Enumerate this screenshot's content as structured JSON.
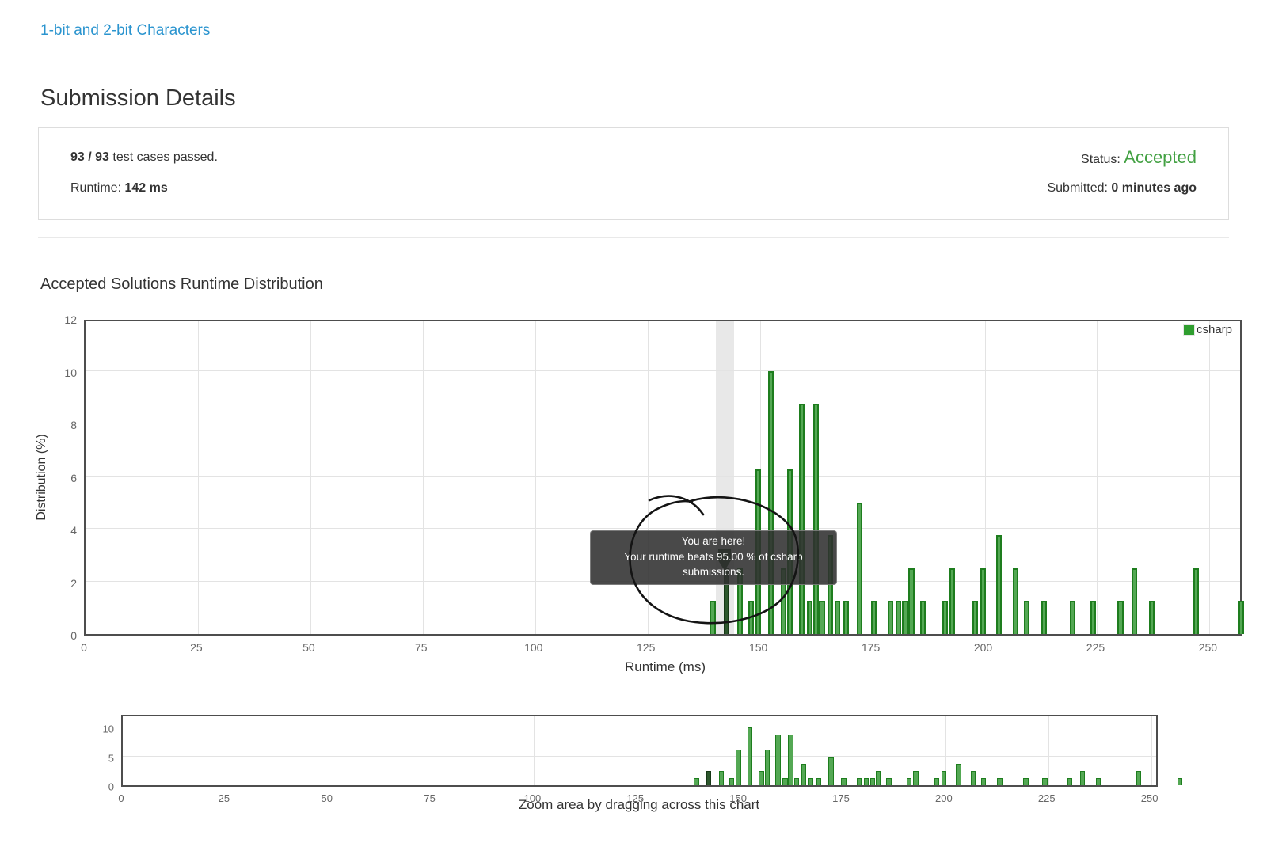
{
  "header": {
    "problem_link": "1-bit and 2-bit Characters",
    "page_title": "Submission Details"
  },
  "details": {
    "passed_count": "93 / 93",
    "passed_text": " test cases passed.",
    "runtime_label": "Runtime: ",
    "runtime_value": "142 ms",
    "status_label": "Status: ",
    "status_value": "Accepted",
    "submitted_label": "Submitted: ",
    "submitted_value": "0 minutes ago"
  },
  "section": {
    "chart_title": "Accepted Solutions Runtime Distribution"
  },
  "chart_data": {
    "type": "bar",
    "title": "Accepted Solutions Runtime Distribution",
    "xlabel": "Runtime (ms)",
    "ylabel": "Distribution (%)",
    "xlim": [
      0,
      257.5
    ],
    "ylim": [
      0,
      12
    ],
    "x_ticks": [
      0,
      25,
      50,
      75,
      100,
      125,
      150,
      175,
      200,
      225,
      250
    ],
    "y_ticks": [
      0,
      2,
      4,
      6,
      8,
      10,
      12
    ],
    "grid": true,
    "legend": [
      "csharp"
    ],
    "legend_position": "top-right",
    "series_name": "csharp",
    "bar_width_ms": 1.25,
    "bars": [
      [
        139.5,
        1.25
      ],
      [
        142.5,
        2.5
      ],
      [
        145.5,
        2.5
      ],
      [
        148,
        1.25
      ],
      [
        149.7,
        6.25
      ],
      [
        152.5,
        10
      ],
      [
        155.3,
        2.5
      ],
      [
        156.7,
        6.25
      ],
      [
        159.3,
        8.75
      ],
      [
        161,
        1.25
      ],
      [
        162.4,
        8.75
      ],
      [
        163.8,
        1.25
      ],
      [
        165.6,
        3.75
      ],
      [
        167.2,
        1.25
      ],
      [
        169.2,
        1.25
      ],
      [
        172.2,
        5
      ],
      [
        175.3,
        1.25
      ],
      [
        179,
        1.25
      ],
      [
        180.8,
        1.25
      ],
      [
        182.3,
        1.25
      ],
      [
        183.7,
        2.5
      ],
      [
        186.3,
        1.25
      ],
      [
        191.2,
        1.25
      ],
      [
        192.8,
        2.5
      ],
      [
        197.9,
        1.25
      ],
      [
        199.6,
        2.5
      ],
      [
        203.2,
        3.75
      ],
      [
        206.8,
        2.5
      ],
      [
        209.3,
        1.25
      ],
      [
        213.2,
        1.25
      ],
      [
        219.6,
        1.25
      ],
      [
        224.2,
        1.25
      ],
      [
        230.2,
        1.25
      ],
      [
        233.3,
        2.5
      ],
      [
        237.2,
        1.25
      ],
      [
        247,
        2.5
      ],
      [
        257,
        1.25
      ]
    ],
    "highlight": {
      "x": 142.5,
      "value": 2.5,
      "band": [
        140.2,
        144.3
      ],
      "tooltip_line1": "You are here!",
      "tooltip_line2": "Your runtime beats 95.00 % of csharp submissions."
    },
    "colors": {
      "bar_fill": "#54a854",
      "bar_stroke": "#1e7d1e",
      "highlight_fill": "#2d572d",
      "highlight_stroke": "#163816",
      "hover_band": "#e8e8e8",
      "status_green": "#43a143",
      "link_blue": "#2a94cf"
    }
  },
  "navigator": {
    "caption": "Zoom area by dragging across this chart",
    "xlim": [
      0,
      252
    ],
    "ylim": [
      0,
      12.5
    ],
    "x_ticks": [
      0,
      25,
      50,
      75,
      100,
      125,
      150,
      175,
      200,
      225,
      250
    ],
    "y_ticks": [
      0,
      5,
      10
    ]
  }
}
